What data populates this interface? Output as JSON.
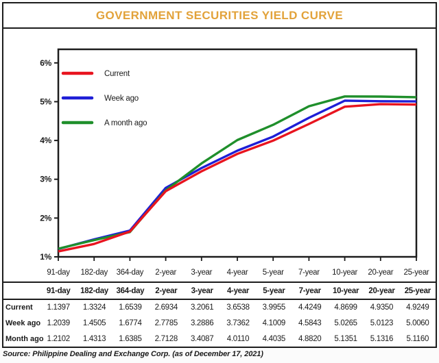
{
  "title": "GOVERNMENT SECURITIES YIELD CURVE",
  "source_note": "Source: Philippine Dealing and Exchange Corp. (as of December 17, 2021)",
  "colors": {
    "title": "#E2A23A",
    "border": "#1C1C1C",
    "current": "#E8141F",
    "week_ago": "#1E1ED6",
    "month_ago": "#1F8F2B"
  },
  "chart_data": {
    "type": "line",
    "title": "GOVERNMENT SECURITIES YIELD CURVE",
    "categories": [
      "91-day",
      "182-day",
      "364-day",
      "2-year",
      "3-year",
      "4-year",
      "5-year",
      "7-year",
      "10-year",
      "20-year",
      "25-year"
    ],
    "series": [
      {
        "name": "Current",
        "color": "#E8141F",
        "values": [
          1.1397,
          1.3324,
          1.6539,
          2.6934,
          3.2061,
          3.6538,
          3.9955,
          4.4249,
          4.8699,
          4.935,
          4.9249
        ]
      },
      {
        "name": "Week ago",
        "color": "#1E1ED6",
        "values": [
          1.2039,
          1.4505,
          1.6774,
          2.7785,
          3.2886,
          3.7362,
          4.1009,
          4.5843,
          5.0265,
          5.0123,
          5.006
        ]
      },
      {
        "name": "A month ago",
        "color": "#1F8F2B",
        "values": [
          1.2102,
          1.4313,
          1.6385,
          2.7128,
          3.4087,
          4.011,
          4.4035,
          4.882,
          5.1351,
          5.1316,
          5.116
        ]
      }
    ],
    "xlabel": "",
    "ylabel": "",
    "ylim": [
      1,
      6.35
    ],
    "yticks": {
      "values": [
        1,
        2,
        3,
        4,
        5,
        6
      ],
      "labels": [
        "1%",
        "2%",
        "3%",
        "4%",
        "5%",
        "6%"
      ]
    },
    "legend_position": "top-left",
    "grid": false
  },
  "table": {
    "columns": [
      "91-day",
      "182-day",
      "364-day",
      "2-year",
      "3-year",
      "4-year",
      "5-year",
      "7-year",
      "10-year",
      "20-year",
      "25-year"
    ],
    "rows": [
      {
        "label": "Current",
        "values": [
          "1.1397",
          "1.3324",
          "1.6539",
          "2.6934",
          "3.2061",
          "3.6538",
          "3.9955",
          "4.4249",
          "4.8699",
          "4.9350",
          "4.9249"
        ]
      },
      {
        "label": "Week ago",
        "values": [
          "1.2039",
          "1.4505",
          "1.6774",
          "2.7785",
          "3.2886",
          "3.7362",
          "4.1009",
          "4.5843",
          "5.0265",
          "5.0123",
          "5.0060"
        ]
      },
      {
        "label": "Month ago",
        "values": [
          "1.2102",
          "1.4313",
          "1.6385",
          "2.7128",
          "3.4087",
          "4.0110",
          "4.4035",
          "4.8820",
          "5.1351",
          "5.1316",
          "5.1160"
        ]
      }
    ]
  }
}
